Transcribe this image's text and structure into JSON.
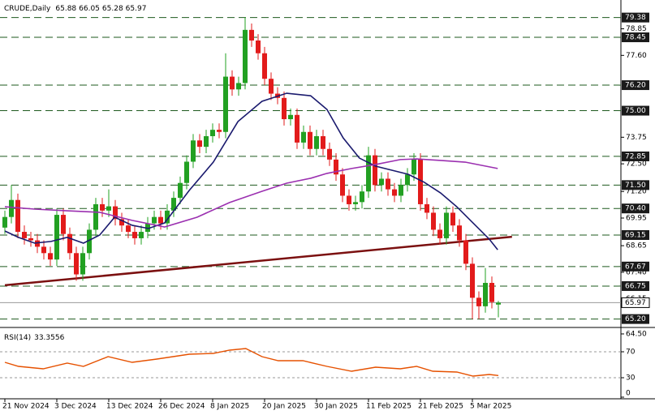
{
  "chart_data": [
    {
      "type": "candlestick",
      "title": "CRUDE,Daily",
      "header_values": [
        65.88,
        66.05,
        65.28,
        65.97
      ],
      "categories": [
        "21 Nov 2024",
        null,
        null,
        null,
        null,
        null,
        null,
        null,
        "3 Dec 2024",
        null,
        null,
        null,
        null,
        null,
        null,
        null,
        "13 Dec 2024",
        null,
        null,
        null,
        null,
        null,
        null,
        null,
        "26 Dec 2024",
        null,
        null,
        null,
        null,
        null,
        null,
        null,
        "8 Jan 2025",
        null,
        null,
        null,
        null,
        null,
        null,
        null,
        "20 Jan 2025",
        null,
        null,
        null,
        null,
        null,
        null,
        null,
        "30 Jan 2025",
        null,
        null,
        null,
        null,
        null,
        null,
        null,
        "11 Feb 2025",
        null,
        null,
        null,
        null,
        null,
        null,
        null,
        "21 Feb 2025",
        null,
        null,
        null,
        null,
        null,
        null,
        null,
        "5 Mar 2025",
        null,
        null,
        null,
        null
      ],
      "open": [
        69.5,
        70.0,
        70.8,
        69.3,
        69.0,
        68.9,
        68.6,
        68.3,
        68.0,
        70.1,
        69.2,
        68.3,
        67.3,
        68.3,
        69.4,
        70.6,
        70.3,
        70.5,
        69.9,
        69.6,
        69.3,
        69.0,
        69.3,
        69.7,
        70.0,
        69.7,
        70.3,
        70.9,
        71.6,
        72.6,
        73.6,
        73.3,
        73.8,
        74.1,
        74.0,
        76.6,
        76.0,
        76.3,
        78.8,
        78.3,
        77.7,
        76.5,
        75.8,
        75.6,
        74.6,
        74.8,
        73.5,
        74.0,
        73.2,
        73.8,
        73.2,
        72.7,
        72.0,
        71.0,
        70.6,
        70.7,
        71.2,
        72.9,
        71.5,
        71.8,
        71.3,
        71.0,
        71.5,
        72.0,
        72.7,
        70.6,
        70.2,
        69.4,
        69.0,
        70.2,
        69.6,
        68.9,
        67.8,
        66.2,
        65.8,
        66.9,
        65.88
      ],
      "high": [
        70.3,
        71.5,
        71.1,
        69.6,
        69.3,
        69.2,
        68.9,
        68.6,
        70.4,
        70.4,
        69.5,
        68.6,
        68.6,
        69.7,
        70.9,
        70.9,
        71.3,
        70.8,
        70.2,
        69.9,
        69.6,
        69.6,
        70.0,
        70.3,
        70.3,
        70.6,
        71.2,
        71.9,
        72.9,
        73.9,
        73.9,
        74.1,
        74.4,
        74.4,
        77.7,
        76.9,
        76.6,
        79.4,
        79.1,
        78.6,
        78.0,
        76.8,
        76.1,
        75.9,
        75.1,
        75.1,
        74.3,
        74.3,
        74.1,
        74.1,
        73.5,
        73.0,
        72.3,
        71.3,
        71.0,
        71.5,
        73.3,
        73.2,
        72.1,
        72.1,
        71.6,
        71.8,
        72.3,
        73.0,
        73.0,
        70.9,
        70.5,
        69.7,
        70.5,
        70.5,
        69.9,
        69.2,
        68.1,
        66.5,
        67.6,
        67.2,
        66.05
      ],
      "low": [
        69.2,
        69.7,
        69.0,
        68.7,
        68.6,
        68.3,
        68.0,
        67.7,
        67.7,
        68.9,
        68.0,
        67.0,
        67.0,
        68.0,
        69.1,
        70.0,
        70.0,
        69.6,
        69.3,
        69.0,
        68.7,
        68.7,
        69.0,
        69.4,
        69.4,
        69.4,
        70.0,
        70.6,
        71.3,
        72.3,
        73.0,
        73.0,
        73.5,
        73.7,
        73.7,
        75.7,
        75.7,
        76.0,
        78.0,
        77.4,
        76.2,
        75.5,
        75.3,
        74.3,
        74.3,
        73.2,
        73.2,
        72.9,
        72.9,
        72.9,
        72.4,
        71.7,
        70.7,
        70.3,
        70.3,
        70.4,
        70.9,
        71.2,
        71.2,
        71.0,
        70.7,
        70.7,
        71.2,
        71.7,
        70.3,
        69.9,
        69.1,
        68.7,
        68.7,
        69.3,
        68.6,
        67.5,
        65.2,
        65.2,
        65.5,
        65.7,
        65.28
      ],
      "close": [
        70.0,
        70.8,
        69.3,
        69.0,
        68.9,
        68.6,
        68.3,
        68.0,
        70.1,
        69.2,
        68.3,
        67.3,
        68.3,
        69.4,
        70.6,
        70.3,
        70.5,
        69.9,
        69.6,
        69.3,
        69.0,
        69.3,
        69.7,
        70.0,
        69.7,
        70.3,
        70.9,
        71.6,
        72.6,
        73.6,
        73.3,
        73.8,
        74.1,
        74.0,
        76.6,
        76.0,
        76.3,
        78.8,
        78.3,
        77.7,
        76.5,
        75.8,
        75.6,
        74.6,
        74.8,
        73.5,
        74.0,
        73.2,
        73.8,
        73.2,
        72.7,
        72.0,
        71.0,
        70.6,
        70.7,
        71.2,
        72.9,
        71.5,
        71.8,
        71.3,
        71.0,
        71.5,
        72.0,
        72.7,
        70.6,
        70.2,
        69.4,
        69.0,
        70.2,
        69.6,
        68.9,
        67.8,
        66.2,
        65.8,
        66.9,
        66.0,
        65.97
      ],
      "up_color": "#22a022",
      "down_color": "#e21b1b",
      "lines": [
        {
          "color": "#1a1a6e",
          "x": [
            0,
            2.1,
            4.6,
            7.1,
            9.6,
            12.1,
            14.6,
            16.9,
            19.6,
            22.1,
            24.6,
            28.4,
            32.1,
            35.9,
            39.6,
            43.4,
            47.1,
            49.6,
            52.1,
            54.6,
            57.1,
            59.6,
            62.1,
            64.6,
            67.1,
            69.6,
            72.1,
            74.6,
            75.9
          ],
          "values": [
            69.34,
            69.04,
            68.77,
            68.85,
            69.04,
            68.77,
            69.15,
            69.99,
            69.61,
            69.46,
            69.72,
            71.25,
            72.58,
            74.49,
            75.44,
            75.82,
            75.7,
            75.06,
            73.72,
            72.77,
            72.39,
            72.2,
            72.01,
            71.63,
            71.13,
            70.48,
            69.72,
            68.96,
            68.46
          ]
        },
        {
          "color": "#9b30b0",
          "x": [
            0,
            4.6,
            9.6,
            14.6,
            19.6,
            24.6,
            29.6,
            34.6,
            39.6,
            43.4,
            47.1,
            49.6,
            53.4,
            57.1,
            60.9,
            63.4,
            67.1,
            70.9,
            75.9
          ],
          "values": [
            70.48,
            70.37,
            70.29,
            70.22,
            69.84,
            69.53,
            69.99,
            70.68,
            71.21,
            71.59,
            71.82,
            72.05,
            72.28,
            72.47,
            72.7,
            72.73,
            72.66,
            72.58,
            72.28
          ]
        }
      ],
      "trendline": {
        "color": "#7b1010",
        "x": [
          0,
          78.1
        ],
        "values": [
          66.79,
          69.07
        ]
      },
      "ylim": [
        64.88,
        79.9
      ],
      "yticks": [
        78.85,
        {
          "value": 77.6,
          "label": "77.60"
        },
        73.75,
        {
          "value": 72.5,
          "label": "72.50"
        },
        {
          "value": 71.2,
          "label": "71.20"
        },
        69.95,
        68.65,
        {
          "value": 67.4,
          "label": "67.40"
        },
        66.15,
        {
          "value": 64.5,
          "label": "64.50"
        }
      ],
      "levels": [
        79.38,
        78.45,
        {
          "value": 76.2,
          "label": "76.20"
        },
        {
          "value": 75,
          "label": "75.00"
        },
        72.85,
        {
          "value": 71.5,
          "label": "71.50"
        },
        {
          "value": 70.4,
          "label": "70.40"
        },
        69.15,
        67.67,
        66.75,
        {
          "value": 65.2,
          "label": "65.20"
        }
      ],
      "level_color": "#1e5a1e"
    },
    {
      "type": "line",
      "title": "RSI(14)",
      "last_value": 33.3556,
      "color": "#e65100",
      "x": [
        0,
        2.1,
        5.9,
        9.6,
        12.1,
        15.9,
        19.6,
        23.4,
        28.4,
        32.1,
        34.6,
        37.1,
        39.6,
        42.1,
        45.9,
        49.6,
        53.4,
        57.1,
        60.9,
        63.4,
        65.9,
        69.6,
        72.1,
        74.6,
        76
      ],
      "values": [
        53.75,
        47.5,
        43.75,
        52.5,
        47.5,
        62.5,
        53.75,
        58.75,
        66.25,
        67.5,
        72.5,
        75,
        62.5,
        56.25,
        56.25,
        47.5,
        40,
        46.25,
        43.75,
        47.5,
        40,
        38.75,
        32.5,
        35,
        33.36
      ],
      "ylim": [
        0,
        100
      ],
      "yticks": [
        0,
        30,
        70
      ],
      "grid": true
    }
  ]
}
